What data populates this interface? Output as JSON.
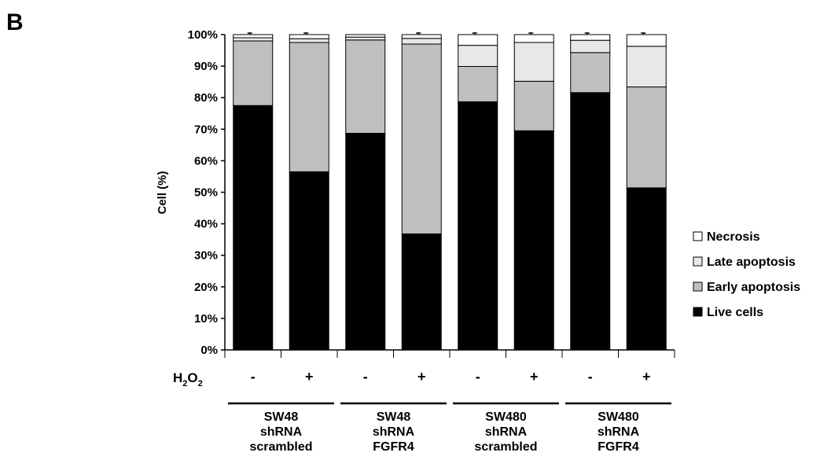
{
  "panel_label": "B",
  "chart_data": {
    "type": "bar",
    "stacked": true,
    "ylabel": "Cell (%)",
    "ylim": [
      0,
      100
    ],
    "yticks": [
      "0%",
      "10%",
      "20%",
      "30%",
      "40%",
      "50%",
      "60%",
      "70%",
      "80%",
      "90%",
      "100%"
    ],
    "treatment_label": "H2O2",
    "treatment_label_main": "H",
    "treatment_label_sub1": "2",
    "treatment_label_mid": "O",
    "treatment_label_sub2": "2",
    "categories": [
      "-",
      "+",
      "-",
      "+",
      "-",
      "+",
      "-",
      "+"
    ],
    "groups": [
      {
        "lines": [
          "SW48",
          "shRNA",
          "scrambled"
        ],
        "span": [
          0,
          1
        ]
      },
      {
        "lines": [
          "SW48",
          "shRNA",
          "FGFR4"
        ],
        "span": [
          2,
          3
        ]
      },
      {
        "lines": [
          "SW480",
          "shRNA",
          "scrambled"
        ],
        "span": [
          4,
          5
        ]
      },
      {
        "lines": [
          "SW480",
          "shRNA",
          "FGFR4"
        ],
        "span": [
          6,
          7
        ]
      }
    ],
    "series": [
      {
        "name": "Live cells",
        "color": "#000000",
        "values": [
          77.5,
          56.5,
          68.7,
          36.8,
          78.7,
          69.5,
          81.6,
          51.4
        ],
        "errors": [
          5.2,
          5.6,
          5.1,
          5.0,
          5.0,
          5.1,
          5.4,
          4.9
        ]
      },
      {
        "name": "Early apoptosis",
        "color": "#bfbfbf",
        "values": [
          20.5,
          41.0,
          29.6,
          60.2,
          11.2,
          15.7,
          12.7,
          32.0
        ],
        "errors": [
          0.3,
          0.3,
          0.3,
          0.7,
          1.5,
          1.8,
          2.0,
          2.0
        ]
      },
      {
        "name": "Late apoptosis",
        "color": "#e8e8e8",
        "values": [
          1.0,
          1.2,
          0.9,
          1.8,
          6.7,
          12.3,
          3.9,
          12.9
        ],
        "errors": [
          0.3,
          0.3,
          0.3,
          0.5,
          0.4,
          0.5,
          0.5,
          0.5
        ]
      },
      {
        "name": "Necrosis",
        "color": "#ffffff",
        "values": [
          1.0,
          1.3,
          0.8,
          1.2,
          3.4,
          2.5,
          1.8,
          3.7
        ],
        "errors": [
          0.5,
          0.5,
          0.0,
          0.5,
          0.5,
          0.5,
          0.5,
          0.5
        ]
      }
    ],
    "legend_order": [
      "Necrosis",
      "Late apoptosis",
      "Early apoptosis",
      "Live cells"
    ],
    "legend_position": "right",
    "grid": false
  }
}
